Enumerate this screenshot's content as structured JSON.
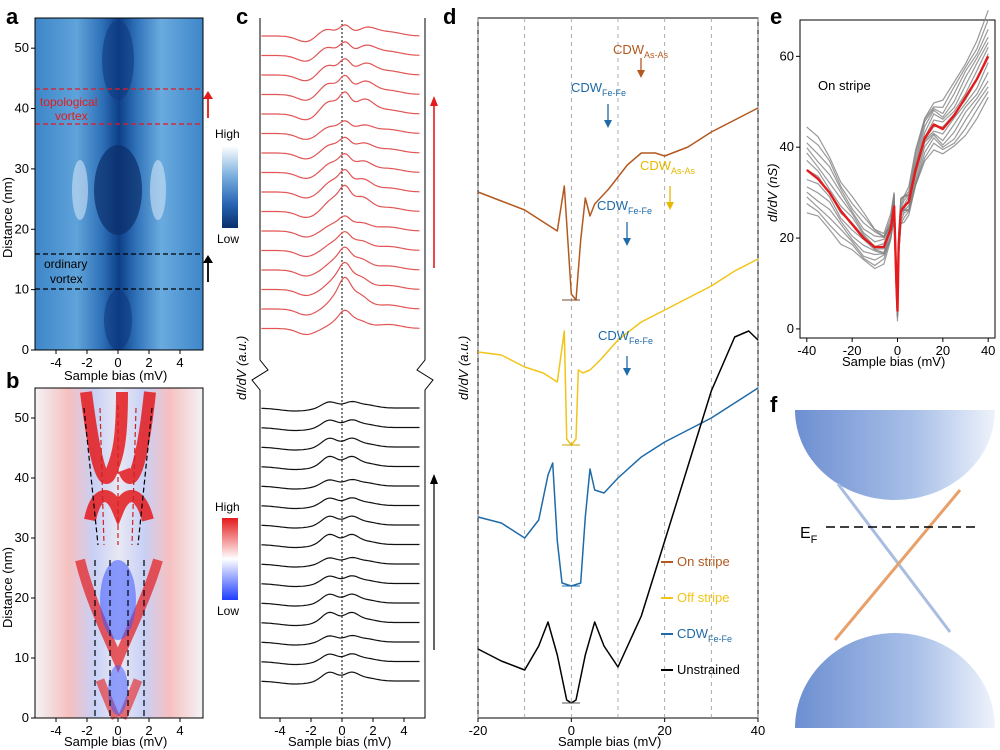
{
  "panels": {
    "a": {
      "letter": "a",
      "ylabel": "Distance (nm)",
      "xlabel": "Sample bias (mV)",
      "yticks": [
        "0",
        "10",
        "20",
        "30",
        "40",
        "50"
      ],
      "xticks": [
        "-4",
        "-2",
        "0",
        "2",
        "4"
      ],
      "colorbar": {
        "high": "High",
        "low": "Low",
        "top_color": "#ffffff",
        "bottom_color": "#08306b"
      },
      "annotations": {
        "topological_1": "topological",
        "topological_2": "vortex",
        "ordinary_1": "ordinary",
        "ordinary_2": "vortex"
      }
    },
    "b": {
      "letter": "b",
      "ylabel": "Distance (nm)",
      "xlabel": "Sample bias (mV)",
      "yticks": [
        "0",
        "10",
        "20",
        "30",
        "40",
        "50"
      ],
      "xticks": [
        "-4",
        "-2",
        "0",
        "2",
        "4"
      ],
      "colorbar": {
        "high": "High",
        "low": "Low",
        "top_color": "#e41a1c",
        "bottom_color": "#1f3cff"
      }
    },
    "c": {
      "letter": "c",
      "ylabel": "dI/dV (a.u.)",
      "xlabel": "Sample bias (mV)",
      "xticks": [
        "-4",
        "-2",
        "0",
        "2",
        "4"
      ],
      "red_count": 16,
      "black_count": 15
    },
    "d": {
      "letter": "d",
      "ylabel": "dI/dV (a.u.)",
      "xlabel": "Sample bias (mV)",
      "xticks": [
        "-20",
        "0",
        "20",
        "40"
      ],
      "labels": {
        "cdw_asas_main": "CDW",
        "cdw_asas_sub": "As-As",
        "cdw_fefe_main": "CDW",
        "cdw_fefe_sub": "Fe-Fe"
      },
      "legend": [
        {
          "label": "On stripe",
          "color": "#b3591f"
        },
        {
          "label": "Off stripe",
          "color": "#f2c418"
        },
        {
          "label": "CDW",
          "sub": "Fe-Fe",
          "color": "#1f6aa8"
        },
        {
          "label": "Unstrained",
          "color": "#000000"
        }
      ]
    },
    "e": {
      "letter": "e",
      "title": "On stripe",
      "ylabel": "dI/dV (nS)",
      "xlabel": "Sample bias (mV)",
      "xticks": [
        "-40",
        "-20",
        "0",
        "20",
        "40"
      ],
      "yticks": [
        "0",
        "20",
        "40",
        "60"
      ]
    },
    "f": {
      "letter": "f",
      "ef_main": "E",
      "ef_sub": "F"
    }
  },
  "chart_data": [
    {
      "type": "line",
      "panel": "e",
      "title": "On stripe",
      "xlabel": "Sample bias (mV)",
      "ylabel": "dI/dV (nS)",
      "xlim": [
        -43,
        43
      ],
      "ylim": [
        -2,
        68
      ],
      "series": [
        {
          "name": "average",
          "color": "#e41a1c",
          "x": [
            -40,
            -35,
            -30,
            -25,
            -20,
            -15,
            -10,
            -6,
            -3,
            -1.5,
            -0.5,
            0,
            0.5,
            1.5,
            3,
            5,
            8,
            12,
            16,
            20,
            25,
            30,
            35,
            40
          ],
          "y": [
            35,
            33,
            30,
            26,
            23,
            20,
            18,
            18,
            22,
            27,
            10,
            4,
            18,
            26,
            27,
            28,
            35,
            42,
            45,
            44,
            47,
            51,
            55,
            60
          ]
        }
      ]
    },
    {
      "type": "line",
      "panel": "d",
      "xlabel": "Sample bias (mV)",
      "ylabel": "dI/dV (a.u.)",
      "xlim": [
        -20,
        40
      ],
      "series": [
        {
          "name": "On stripe",
          "color": "#b3591f",
          "x": [
            -20,
            -15,
            -10,
            -6,
            -3,
            -1.5,
            0,
            1,
            2,
            3,
            4,
            5,
            8,
            12,
            15,
            18,
            20,
            25,
            30,
            35,
            40
          ],
          "y": [
            4.6,
            4.3,
            4.0,
            3.6,
            3.3,
            4.8,
            1.2,
            1.0,
            3.0,
            4.4,
            3.8,
            4.2,
            4.7,
            5.5,
            5.9,
            5.9,
            5.8,
            6.1,
            6.6,
            7.0,
            7.4
          ]
        },
        {
          "name": "Off stripe",
          "color": "#f2c418",
          "x": [
            -20,
            -15,
            -10,
            -6,
            -3,
            -1.5,
            -1,
            0,
            1,
            1.5,
            2.5,
            4,
            6,
            10,
            15,
            20,
            25,
            30,
            35,
            40
          ],
          "y": [
            2.5,
            2.4,
            2.0,
            1.8,
            1.5,
            3.2,
            -0.4,
            -0.6,
            -0.4,
            1.9,
            1.8,
            1.9,
            2.2,
            2.9,
            3.5,
            3.9,
            4.3,
            4.7,
            5.2,
            5.6
          ]
        },
        {
          "name": "CDW Fe-Fe",
          "color": "#1f6aa8",
          "x": [
            -20,
            -15,
            -10,
            -7,
            -5,
            -4,
            -3,
            -2,
            0,
            2,
            3,
            4,
            5,
            7,
            10,
            15,
            20,
            25,
            30,
            35,
            40
          ],
          "y": [
            1.0,
            0.8,
            0.3,
            0.9,
            2.4,
            2.8,
            0.2,
            -1.2,
            -1.3,
            -1.2,
            1.0,
            2.6,
            1.9,
            1.8,
            2.3,
            3.0,
            3.5,
            3.9,
            4.3,
            4.8,
            5.3
          ]
        },
        {
          "name": "Unstrained",
          "color": "#000000",
          "x": [
            -20,
            -15,
            -10,
            -7,
            -5,
            -3,
            -1,
            0,
            1,
            3,
            5,
            7,
            10,
            15,
            20,
            25,
            30,
            35,
            38,
            40
          ],
          "y": [
            -2.6,
            -3.0,
            -3.3,
            -2.5,
            -1.7,
            -2.8,
            -4.3,
            -4.4,
            -4.3,
            -2.8,
            -1.7,
            -2.5,
            -3.2,
            -1.5,
            1.0,
            3.5,
            6.0,
            7.8,
            8.0,
            7.7
          ]
        }
      ]
    }
  ]
}
